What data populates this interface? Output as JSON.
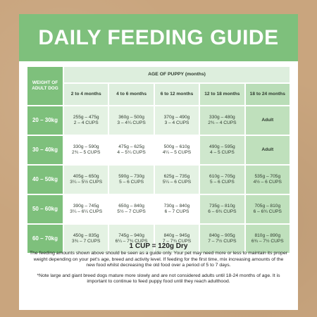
{
  "title": "DAILY FEEDING GUIDE",
  "table": {
    "weight_header": "WEIGHT OF ADULT DOG",
    "age_header": "AGE OF PUPPY (months)",
    "columns": [
      "2 to 4 months",
      "4 to 6 months",
      "6 to 12 months",
      "12 to 18 months",
      "18 to 24 months"
    ],
    "rows": [
      {
        "weight": "20 – 30kg",
        "cells": [
          [
            "255g – 475g",
            "2 – 4 CUPS"
          ],
          [
            "360g – 500g",
            "3 – 4¼ CUPS"
          ],
          [
            "370g – 490g",
            "3 – 4 CUPS"
          ],
          [
            "330g – 480g",
            "2¾ – 4 CUPS"
          ],
          [
            "Adult",
            ""
          ]
        ]
      },
      {
        "weight": "30 – 40kg",
        "cells": [
          [
            "330g – 590g",
            "2¾ – 5 CUPS"
          ],
          [
            "475g – 625g",
            "4 – 5¼ CUPS"
          ],
          [
            "500g – 610g",
            "4¼ – 5 CUPS"
          ],
          [
            "490g – 595g",
            "4 – 5 CUPS"
          ],
          [
            "Adult",
            ""
          ]
        ]
      },
      {
        "weight": "40 – 50kg",
        "cells": [
          [
            "405g – 650g",
            "3¼ – 5½ CUPS"
          ],
          [
            "590g – 730g",
            "5 – 6 CUPS"
          ],
          [
            "625g – 735g",
            "5¼ – 6 CUPS"
          ],
          [
            "610g – 705g",
            "5 – 6 CUPS"
          ],
          [
            "535g – 705g",
            "4½ – 6 CUPS"
          ]
        ]
      },
      {
        "weight": "50 – 60kg",
        "cells": [
          [
            "390g – 745g",
            "3¼ – 6¼ CUPS"
          ],
          [
            "650g – 840g",
            "5½ – 7 CUPS"
          ],
          [
            "730g – 840g",
            "6 – 7 CUPS"
          ],
          [
            "735g – 810g",
            "6 – 6¾ CUPS"
          ],
          [
            "705g – 810g",
            "6 – 6¾ CUPS"
          ]
        ]
      },
      {
        "weight": "60 – 70kg",
        "cells": [
          [
            "450g – 835g",
            "3¾ – 7 CUPS"
          ],
          [
            "745g – 940g",
            "6¼ – 7¾ CUPS"
          ],
          [
            "840g – 945g",
            "7 – 7¾ CUPS"
          ],
          [
            "840g – 905g",
            "7 – 7½ CUPS"
          ],
          [
            "810g – 890g",
            "6¾ – 7½ CUPS"
          ]
        ]
      }
    ]
  },
  "footer": {
    "cup": "1 CUP = 120g Dry",
    "note": "The feeding amounts shown above should be seen as a guide only. Your pet may need more or less to maintain its proper weight depending on your pet's age, breed and activity level. If feeding for the first time, mix increasing amounts of the new food whilst decreasing the old food over a period of 5 to 7 days.",
    "note2": "*Note large and giant breed dogs mature more slowly and are not considered adults until 18-24 months of age. It is important to continue to feed puppy food until they reach adulthood."
  },
  "colors": {
    "accent": "#7ec07c",
    "light_green": "#ddeedd",
    "background": "#c9a57e"
  }
}
